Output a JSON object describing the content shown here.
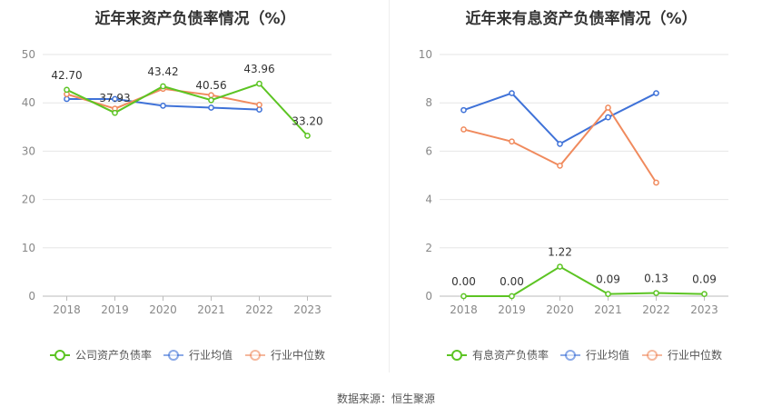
{
  "colors": {
    "company": "#5cc423",
    "industry_avg": "#3f72d8",
    "industry_median": "#f08a5d",
    "grid": "#e6e6e6",
    "axis_text": "#888888"
  },
  "source_text": "数据来源：恒生聚源",
  "chart_data": [
    {
      "type": "line",
      "title": "近年来资产负债率情况（%）",
      "x": [
        "2018",
        "2019",
        "2020",
        "2021",
        "2022",
        "2023"
      ],
      "ylim": [
        0,
        50
      ],
      "yticks": [
        0,
        10,
        20,
        30,
        40,
        50
      ],
      "grid": true,
      "legend_position": "bottom",
      "series": [
        {
          "name": "公司资产负债率",
          "key": "company",
          "values": [
            42.7,
            37.93,
            43.42,
            40.56,
            43.96,
            33.2
          ],
          "labels": [
            "42.70",
            "37.93",
            "43.42",
            "40.56",
            "43.96",
            "33.20"
          ]
        },
        {
          "name": "行业均值",
          "key": "industry_avg",
          "values": [
            40.8,
            40.8,
            39.4,
            39.0,
            38.6,
            null
          ]
        },
        {
          "name": "行业中位数",
          "key": "industry_median",
          "values": [
            41.8,
            38.8,
            42.9,
            41.6,
            39.6,
            null
          ]
        }
      ]
    },
    {
      "type": "line",
      "title": "近年来有息资产负债率情况（%）",
      "x": [
        "2018",
        "2019",
        "2020",
        "2021",
        "2022",
        "2023"
      ],
      "ylim": [
        0,
        10
      ],
      "yticks": [
        0,
        2,
        4,
        6,
        8,
        10
      ],
      "grid": true,
      "legend_position": "bottom",
      "series": [
        {
          "name": "有息资产负债率",
          "key": "company",
          "values": [
            0.0,
            0.0,
            1.22,
            0.09,
            0.13,
            0.09
          ],
          "labels": [
            "0.00",
            "0.00",
            "1.22",
            "0.09",
            "0.13",
            "0.09"
          ]
        },
        {
          "name": "行业均值",
          "key": "industry_avg",
          "values": [
            7.7,
            8.4,
            6.3,
            7.4,
            8.4,
            null
          ]
        },
        {
          "name": "行业中位数",
          "key": "industry_median",
          "values": [
            6.9,
            6.4,
            5.4,
            7.8,
            4.7,
            null
          ]
        }
      ]
    }
  ]
}
